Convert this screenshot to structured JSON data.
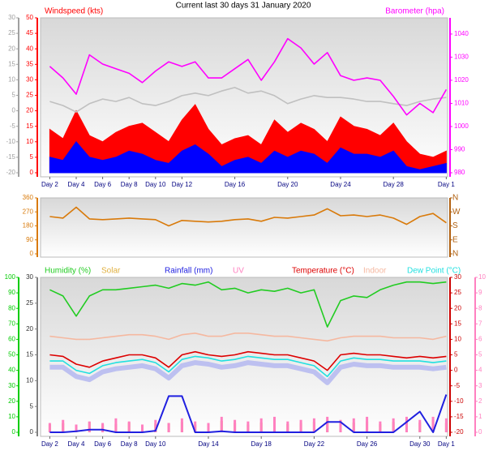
{
  "chart_data": [
    {
      "type": "line",
      "title": "Current last 30 days 31 January 2020",
      "y2label": "Windspeed (kts)",
      "y3label": "Barometer (hpa)",
      "x": [
        2,
        3,
        4,
        5,
        6,
        7,
        8,
        9,
        10,
        11,
        12,
        13,
        14,
        15,
        16,
        17,
        18,
        19,
        20,
        21,
        22,
        23,
        24,
        25,
        26,
        27,
        28,
        29,
        30,
        31,
        32
      ],
      "xlim": [
        1.3,
        32.1
      ],
      "xticks": [
        {
          "value": 2,
          "label": "Day 2"
        },
        {
          "value": 4,
          "label": "Day 4"
        },
        {
          "value": 6,
          "label": "Day 6"
        },
        {
          "value": 8,
          "label": "Day 8"
        },
        {
          "value": 10,
          "label": "Day 10"
        },
        {
          "value": 12,
          "label": "Day 12"
        },
        {
          "value": 16,
          "label": "Day 16"
        },
        {
          "value": 20,
          "label": "Day 20"
        },
        {
          "value": 24,
          "label": "Day 24"
        },
        {
          "value": 28,
          "label": "Day 28"
        },
        {
          "value": 32,
          "label": "Day 1"
        }
      ],
      "ylim": [
        -20,
        30
      ],
      "yticks": [
        30,
        25,
        20,
        15,
        10,
        5,
        0,
        -5,
        -10,
        -15,
        -20
      ],
      "y2lim": [
        0,
        50
      ],
      "y2ticks": [
        50,
        45,
        40,
        35,
        30,
        25,
        20,
        15,
        10,
        5,
        0
      ],
      "y3lim": [
        980,
        1047
      ],
      "y3ticks": [
        1040,
        1030,
        1020,
        1010,
        1000,
        990,
        980
      ],
      "axis_colors": {
        "y": "#a0a0a0",
        "y2": "#ff0000",
        "y3": "#ff00ff"
      },
      "series": [
        {
          "color": "#ff0000",
          "axis": "y2",
          "fill": true,
          "values": [
            14,
            11,
            20,
            12,
            10,
            13,
            15,
            16,
            13,
            10,
            17,
            22,
            14,
            9,
            11,
            12,
            9,
            17,
            13,
            16,
            14,
            10,
            18,
            15,
            14,
            12,
            16,
            10,
            6,
            5,
            7
          ]
        },
        {
          "color": "#0000ff",
          "axis": "y2",
          "fill": true,
          "values": [
            5,
            4,
            10,
            5,
            4,
            5,
            7,
            6,
            4,
            3,
            7,
            9,
            6,
            2,
            4,
            5,
            3,
            7,
            5,
            7,
            6,
            3,
            8,
            6,
            6,
            5,
            7,
            2,
            1,
            2,
            3
          ]
        },
        {
          "color": "#ff00ff",
          "axis": "y3",
          "values": [
            1026,
            1021,
            1014,
            1031,
            1027,
            1025,
            1023,
            1019,
            1024,
            1028,
            1026,
            1028,
            1021,
            1021,
            1025,
            1029,
            1020,
            1028,
            1038,
            1034,
            1027,
            1032,
            1022,
            1020,
            1021,
            1020,
            1013,
            1005,
            1010,
            1006,
            1016
          ]
        },
        {
          "color": "#c0c0c0",
          "axis": "y",
          "values": [
            3,
            1.7,
            -0.4,
            2.3,
            3.8,
            3,
            4.3,
            2.3,
            1.7,
            3,
            4.9,
            5.7,
            4.9,
            6.4,
            7.5,
            5.7,
            6.4,
            4.9,
            2.3,
            3.8,
            4.9,
            4.3,
            4.3,
            3.8,
            3,
            3,
            2.3,
            1.7,
            3,
            3.8,
            4.3
          ]
        }
      ]
    },
    {
      "type": "line",
      "x": [
        2,
        3,
        4,
        5,
        6,
        7,
        8,
        9,
        10,
        11,
        12,
        13,
        14,
        15,
        16,
        17,
        18,
        19,
        20,
        21,
        22,
        23,
        24,
        25,
        26,
        27,
        28,
        29,
        30,
        31,
        32
      ],
      "xlim": [
        1.3,
        32.1
      ],
      "ylim": [
        0,
        360
      ],
      "yticks": [
        360,
        270,
        180,
        90,
        0
      ],
      "y2lim": [
        0,
        360
      ],
      "y2ticks": [
        {
          "value": 360,
          "label": "N"
        },
        {
          "value": 270,
          "label": "W"
        },
        {
          "value": 180,
          "label": "S"
        },
        {
          "value": 90,
          "label": "E"
        },
        {
          "value": 0,
          "label": "N"
        }
      ],
      "axis_colors": {
        "y": "#d97a0a",
        "y2": "#b06010"
      },
      "series": [
        {
          "color": "#d97a0a",
          "axis": "y",
          "values": [
            240,
            230,
            300,
            225,
            220,
            225,
            230,
            225,
            220,
            180,
            215,
            210,
            205,
            210,
            220,
            225,
            210,
            235,
            230,
            240,
            250,
            290,
            245,
            250,
            240,
            250,
            230,
            190,
            240,
            260,
            200
          ]
        }
      ]
    },
    {
      "type": "line",
      "x": [
        2,
        3,
        4,
        5,
        6,
        7,
        8,
        9,
        10,
        11,
        12,
        13,
        14,
        15,
        16,
        17,
        18,
        19,
        20,
        21,
        22,
        23,
        24,
        25,
        26,
        27,
        28,
        29,
        30,
        31,
        32
      ],
      "xlim": [
        1.3,
        32.1
      ],
      "xticks": [
        {
          "value": 2,
          "label": "Day 2"
        },
        {
          "value": 4,
          "label": "Day 4"
        },
        {
          "value": 6,
          "label": "Day 6"
        },
        {
          "value": 8,
          "label": "Day 8"
        },
        {
          "value": 10,
          "label": "Day 10"
        },
        {
          "value": 14,
          "label": "Day 14"
        },
        {
          "value": 18,
          "label": "Day 18"
        },
        {
          "value": 22,
          "label": "Day 22"
        },
        {
          "value": 26,
          "label": "Day 26"
        },
        {
          "value": 30,
          "label": "Day 30"
        },
        {
          "value": 32,
          "label": "Day 1"
        }
      ],
      "ylim": [
        0,
        100
      ],
      "yticks": [
        100,
        90,
        80,
        70,
        60,
        50,
        40,
        30,
        20,
        10,
        0
      ],
      "y2lim": [
        0,
        30
      ],
      "y2ticks": [
        30,
        25,
        20,
        15,
        10,
        5,
        0
      ],
      "y3lim": [
        -20,
        30
      ],
      "y3ticks": [
        30,
        25,
        20,
        15,
        10,
        5,
        0,
        -5,
        -10,
        -15,
        -20
      ],
      "y4lim": [
        0,
        10
      ],
      "y4ticks": [
        10,
        9,
        8,
        7,
        6,
        5,
        4,
        3,
        2,
        1,
        0
      ],
      "axis_colors": {
        "y": "#00cc00",
        "y2": "#808080",
        "y3": "#cc0000",
        "y4": "#ff80c0"
      },
      "series": [
        {
          "name": "Humidity (%)",
          "color": "#22cc22",
          "axis": "y",
          "values": [
            92,
            88,
            75,
            88,
            92,
            92,
            93,
            94,
            95,
            93,
            96,
            95,
            97,
            92,
            93,
            90,
            92,
            91,
            93,
            90,
            92,
            68,
            85,
            88,
            87,
            92,
            95,
            97,
            97,
            96,
            97
          ]
        },
        {
          "name": "Solar",
          "color": "#e0b040",
          "axis": "y2",
          "bars": true,
          "values": [
            1.5,
            1.8,
            1.2,
            2,
            1.5,
            1.6,
            1.9,
            1.4,
            1.7,
            1.8,
            2,
            1.5,
            1.6,
            2.2,
            1.8,
            1.5,
            1.9,
            2.1,
            1.6,
            1.8,
            2,
            2.3,
            1.7,
            1.9,
            2.1,
            1.6,
            2,
            2.2,
            1.9,
            2.4,
            1.8
          ]
        },
        {
          "name": "Rainfall (mm)",
          "color": "#2020e0",
          "axis": "y2",
          "values": [
            0,
            0,
            0.2,
            0.5,
            0.5,
            0,
            0,
            0,
            0.3,
            7,
            7,
            0,
            0,
            0.2,
            0,
            0,
            0,
            0,
            0,
            0,
            0,
            2,
            2,
            0,
            0,
            0,
            0,
            2,
            4,
            0,
            7.3
          ]
        },
        {
          "name": "UV",
          "color": "#ff80c0",
          "axis": "y4",
          "bars": true,
          "values": [
            0.6,
            0.8,
            0.5,
            0.7,
            0.6,
            0.9,
            0.7,
            0.5,
            0.8,
            0.6,
            0.9,
            0.7,
            0.6,
            1,
            0.8,
            0.7,
            0.9,
            1,
            0.7,
            0.8,
            0.9,
            1,
            0.8,
            0.9,
            1,
            0.7,
            0.9,
            1,
            0.8,
            1,
            0.9
          ]
        },
        {
          "name": "Temperature (°C)",
          "color": "#dd0000",
          "axis": "y3",
          "values": [
            5,
            4.5,
            2,
            1,
            3,
            4,
            5,
            5,
            4,
            1,
            5,
            6,
            5,
            4.5,
            5,
            6,
            5.5,
            5,
            5,
            4,
            3,
            0,
            5,
            5.5,
            5,
            5,
            4.5,
            4,
            4.5,
            4,
            4.5
          ]
        },
        {
          "name": "Indoor",
          "color": "#f5b8a0",
          "axis": "y3",
          "values": [
            11,
            10.5,
            10,
            10,
            10.5,
            11,
            11.5,
            11.5,
            11,
            10,
            11.5,
            12,
            11,
            11,
            12,
            12,
            11.5,
            11,
            11,
            10.5,
            10,
            9.5,
            10.5,
            11,
            11,
            11,
            10.5,
            10.5,
            10.5,
            10,
            11
          ]
        },
        {
          "name": "Dew Point (°C)",
          "color": "#22e0e0",
          "axis": "y3",
          "values": [
            3,
            3,
            0,
            -1,
            1.5,
            2.5,
            3,
            3.5,
            2.5,
            -0.5,
            3.5,
            4.5,
            4,
            3,
            3.5,
            4.5,
            4,
            3.5,
            3.5,
            2.5,
            1.5,
            -2,
            3,
            4,
            3.5,
            3.5,
            3,
            3,
            3,
            2.5,
            3
          ]
        },
        {
          "color": "#b0b4f0",
          "axis": "y3",
          "values": [
            1,
            1,
            -2,
            -3,
            -0.5,
            0.5,
            1,
            1.5,
            0.5,
            -2.5,
            1.5,
            2.5,
            2,
            1,
            1.5,
            2.5,
            2,
            1.5,
            1.5,
            0.5,
            -0.5,
            -4,
            1,
            2,
            1.5,
            1.5,
            1,
            1,
            1,
            0.5,
            1
          ]
        }
      ]
    }
  ]
}
